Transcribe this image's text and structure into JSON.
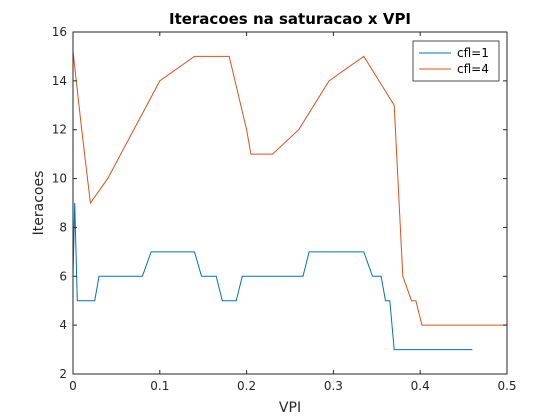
{
  "chart_data": {
    "type": "line",
    "title": "Iteracoes na saturacao x VPI",
    "xlabel": "VPI",
    "ylabel": "Iteracoes",
    "xlim": [
      0,
      0.5
    ],
    "ylim": [
      2,
      16
    ],
    "x_ticks": [
      0,
      0.1,
      0.2,
      0.3,
      0.4,
      0.5
    ],
    "x_tick_labels": [
      "0",
      "0.1",
      "0.2",
      "0.3",
      "0.4",
      "0.5"
    ],
    "y_ticks": [
      2,
      4,
      6,
      8,
      10,
      12,
      14,
      16
    ],
    "y_tick_labels": [
      "2",
      "4",
      "6",
      "8",
      "10",
      "12",
      "14",
      "16"
    ],
    "grid": false,
    "legend_position": "top-right",
    "series": [
      {
        "name": "cfl=1",
        "color": "#0072bd",
        "points": [
          [
            0,
            6
          ],
          [
            0.002,
            9
          ],
          [
            0.005,
            5
          ],
          [
            0.025,
            5
          ],
          [
            0.03,
            6
          ],
          [
            0.08,
            6
          ],
          [
            0.09,
            7
          ],
          [
            0.14,
            7
          ],
          [
            0.148,
            6
          ],
          [
            0.165,
            6
          ],
          [
            0.172,
            5
          ],
          [
            0.188,
            5
          ],
          [
            0.195,
            6
          ],
          [
            0.265,
            6
          ],
          [
            0.272,
            7
          ],
          [
            0.335,
            7
          ],
          [
            0.345,
            6
          ],
          [
            0.355,
            6
          ],
          [
            0.36,
            5
          ],
          [
            0.365,
            5
          ],
          [
            0.37,
            3
          ],
          [
            0.46,
            3
          ]
        ]
      },
      {
        "name": "cfl=4",
        "color": "#d95319",
        "points": [
          [
            0,
            15.2
          ],
          [
            0.01,
            12
          ],
          [
            0.02,
            9
          ],
          [
            0.04,
            10
          ],
          [
            0.07,
            12
          ],
          [
            0.1,
            14
          ],
          [
            0.14,
            15
          ],
          [
            0.18,
            15
          ],
          [
            0.2,
            12
          ],
          [
            0.205,
            11
          ],
          [
            0.23,
            11
          ],
          [
            0.26,
            12
          ],
          [
            0.295,
            14
          ],
          [
            0.335,
            15
          ],
          [
            0.37,
            13
          ],
          [
            0.38,
            6
          ],
          [
            0.39,
            5
          ],
          [
            0.395,
            5
          ],
          [
            0.402,
            4
          ],
          [
            0.5,
            4
          ]
        ]
      }
    ]
  }
}
